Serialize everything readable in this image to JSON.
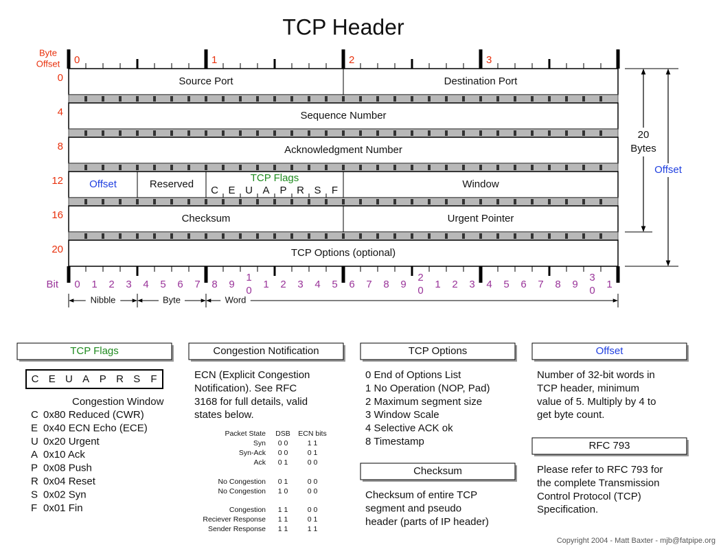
{
  "title": "TCP Header",
  "header": {
    "byte_offset_label": [
      "Byte",
      "Offset"
    ],
    "byte_columns": [
      "0",
      "1",
      "2",
      "3"
    ],
    "rows": [
      {
        "offset": "0",
        "cells": [
          "Source Port",
          "Destination Port"
        ]
      },
      {
        "offset": "4",
        "cells": [
          "Sequence Number"
        ]
      },
      {
        "offset": "8",
        "cells": [
          "Acknowledgment Number"
        ]
      },
      {
        "offset": "12",
        "cells": [
          "Offset",
          "Reserved",
          "Window"
        ]
      },
      {
        "offset": "16",
        "cells": [
          "Checksum",
          "Urgent Pointer"
        ]
      },
      {
        "offset": "20",
        "cells": [
          "TCP Options (optional)"
        ]
      }
    ],
    "flags": {
      "title": "TCP Flags",
      "letters": [
        "C",
        "E",
        "U",
        "A",
        "P",
        "R",
        "S",
        "F"
      ]
    },
    "bit_label": "Bit",
    "bits": [
      "0",
      "1",
      "2",
      "3",
      "4",
      "5",
      "6",
      "7",
      "8",
      "9",
      [
        "1",
        "0"
      ],
      "1",
      "2",
      "3",
      "4",
      "5",
      "6",
      "7",
      "8",
      "9",
      [
        "2",
        "0"
      ],
      "1",
      "2",
      "3",
      "4",
      "5",
      "6",
      "7",
      "8",
      "9",
      [
        "3",
        "0"
      ],
      "1"
    ],
    "scale": [
      "Nibble",
      "Byte",
      "Word"
    ],
    "size_label": [
      "20",
      "Bytes"
    ],
    "offset_label": "Offset"
  },
  "panels": {
    "flags": {
      "title": "TCP Flags",
      "letters": [
        "C",
        "E",
        "U",
        "A",
        "P",
        "R",
        "S",
        "F"
      ],
      "subtitle": "Congestion Window",
      "items": [
        [
          "C",
          "0x80 Reduced (CWR)"
        ],
        [
          "E",
          "0x40 ECN Echo (ECE)"
        ],
        [
          "U",
          "0x20 Urgent"
        ],
        [
          "A",
          "0x10 Ack"
        ],
        [
          "P",
          "0x08 Push"
        ],
        [
          "R",
          "0x04 Reset"
        ],
        [
          "S",
          "0x02 Syn"
        ],
        [
          "F",
          "0x01 Fin"
        ]
      ]
    },
    "congestion": {
      "title": "Congestion Notification",
      "text": [
        "ECN (Explicit Congestion",
        "Notification).  See RFC",
        "3168 for full details, valid",
        "states below."
      ],
      "table": {
        "header": [
          "Packet State",
          "DSB",
          "ECN bits"
        ],
        "rows": [
          [
            "Syn",
            "0 0",
            "1 1"
          ],
          [
            "Syn-Ack",
            "0 0",
            "0 1"
          ],
          [
            "Ack",
            "0 1",
            "0 0"
          ],
          [
            "No Congestion",
            "0 1",
            "0 0"
          ],
          [
            "No Congestion",
            "1 0",
            "0 0"
          ],
          [
            "Congestion",
            "1 1",
            "0 0"
          ],
          [
            "Reciever Response",
            "1 1",
            "0 1"
          ],
          [
            "Sender Response",
            "1 1",
            "1 1"
          ]
        ]
      }
    },
    "options": {
      "title": "TCP Options",
      "items": [
        "0 End of Options List",
        "1 No Operation (NOP, Pad)",
        "2 Maximum segment size",
        "3 Window Scale",
        "4 Selective ACK ok",
        "8 Timestamp"
      ]
    },
    "checksum": {
      "title": "Checksum",
      "text": [
        "Checksum of entire TCP",
        "segment and pseudo",
        "header (parts of IP header)"
      ]
    },
    "offset": {
      "title": "Offset",
      "text": [
        "Number of 32-bit words in",
        "TCP header, minimum",
        "value of 5.  Multiply by 4 to",
        "get byte count."
      ]
    },
    "rfc": {
      "title": "RFC 793",
      "text": [
        "Please refer to RFC 793 for",
        "the complete Transmission",
        "Control Protocol (TCP)",
        "Specification."
      ]
    }
  },
  "copyright": "Copyright 2004 - Matt Baxter - mjb@fatpipe.org"
}
